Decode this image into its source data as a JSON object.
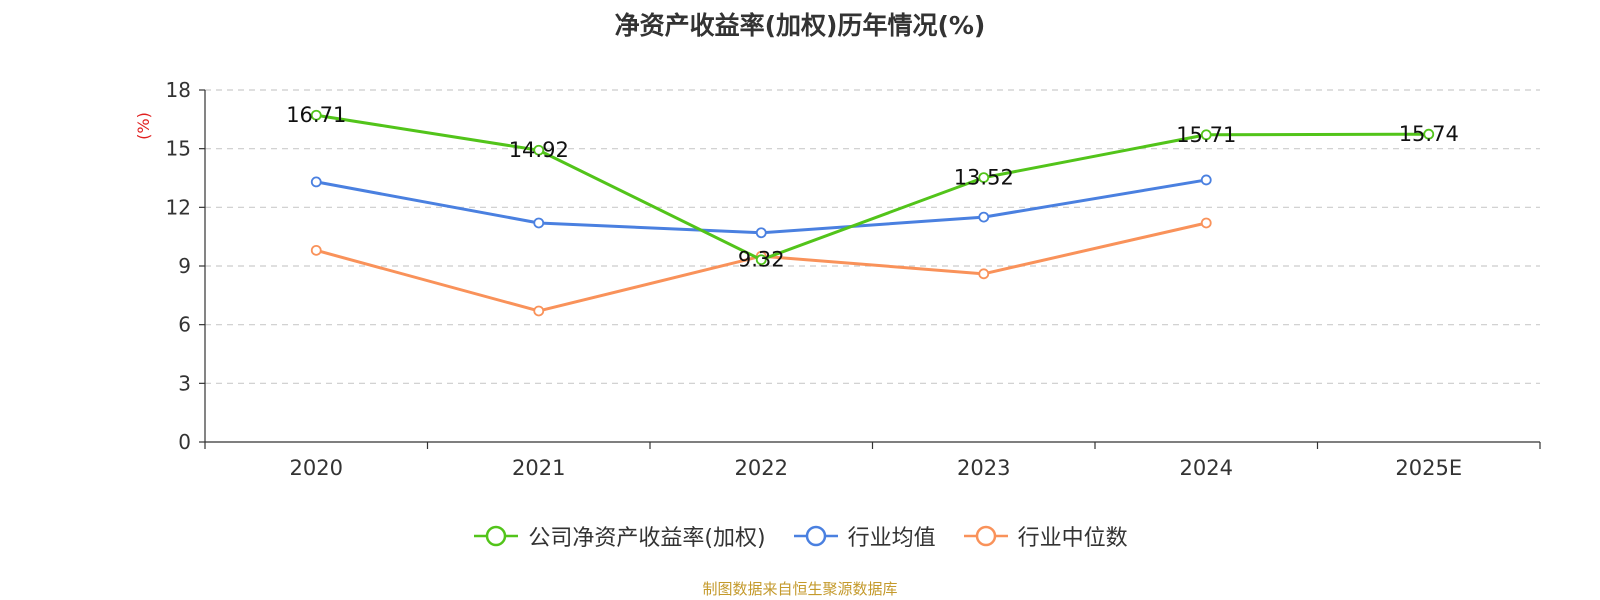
{
  "chart_data": {
    "type": "line",
    "title": "净资产收益率(加权)历年情况(%)",
    "ylabel": "(%)",
    "xlabel": "",
    "categories": [
      "2020",
      "2021",
      "2022",
      "2023",
      "2024",
      "2025E"
    ],
    "ylim": [
      0,
      18
    ],
    "yticks": [
      0,
      3,
      6,
      9,
      12,
      15,
      18
    ],
    "grid": true,
    "legend_position": "bottom",
    "series": [
      {
        "name": "公司净资产收益率(加权)",
        "color": "#52c41a",
        "values": [
          16.71,
          14.92,
          9.32,
          13.52,
          15.71,
          15.74
        ],
        "labels": [
          "16.71",
          "14.92",
          "9.32",
          "13.52",
          "15.71",
          "15.74"
        ]
      },
      {
        "name": "行业均值",
        "color": "#4a80e0",
        "values": [
          13.3,
          11.2,
          10.7,
          11.5,
          13.4,
          null
        ]
      },
      {
        "name": "行业中位数",
        "color": "#f9925a",
        "values": [
          9.8,
          6.7,
          9.5,
          8.6,
          11.2,
          null
        ]
      }
    ]
  },
  "axis_label_color": "#e02020",
  "source": {
    "text": "制图数据来自恒生聚源数据库",
    "color": "#c49a2c"
  }
}
